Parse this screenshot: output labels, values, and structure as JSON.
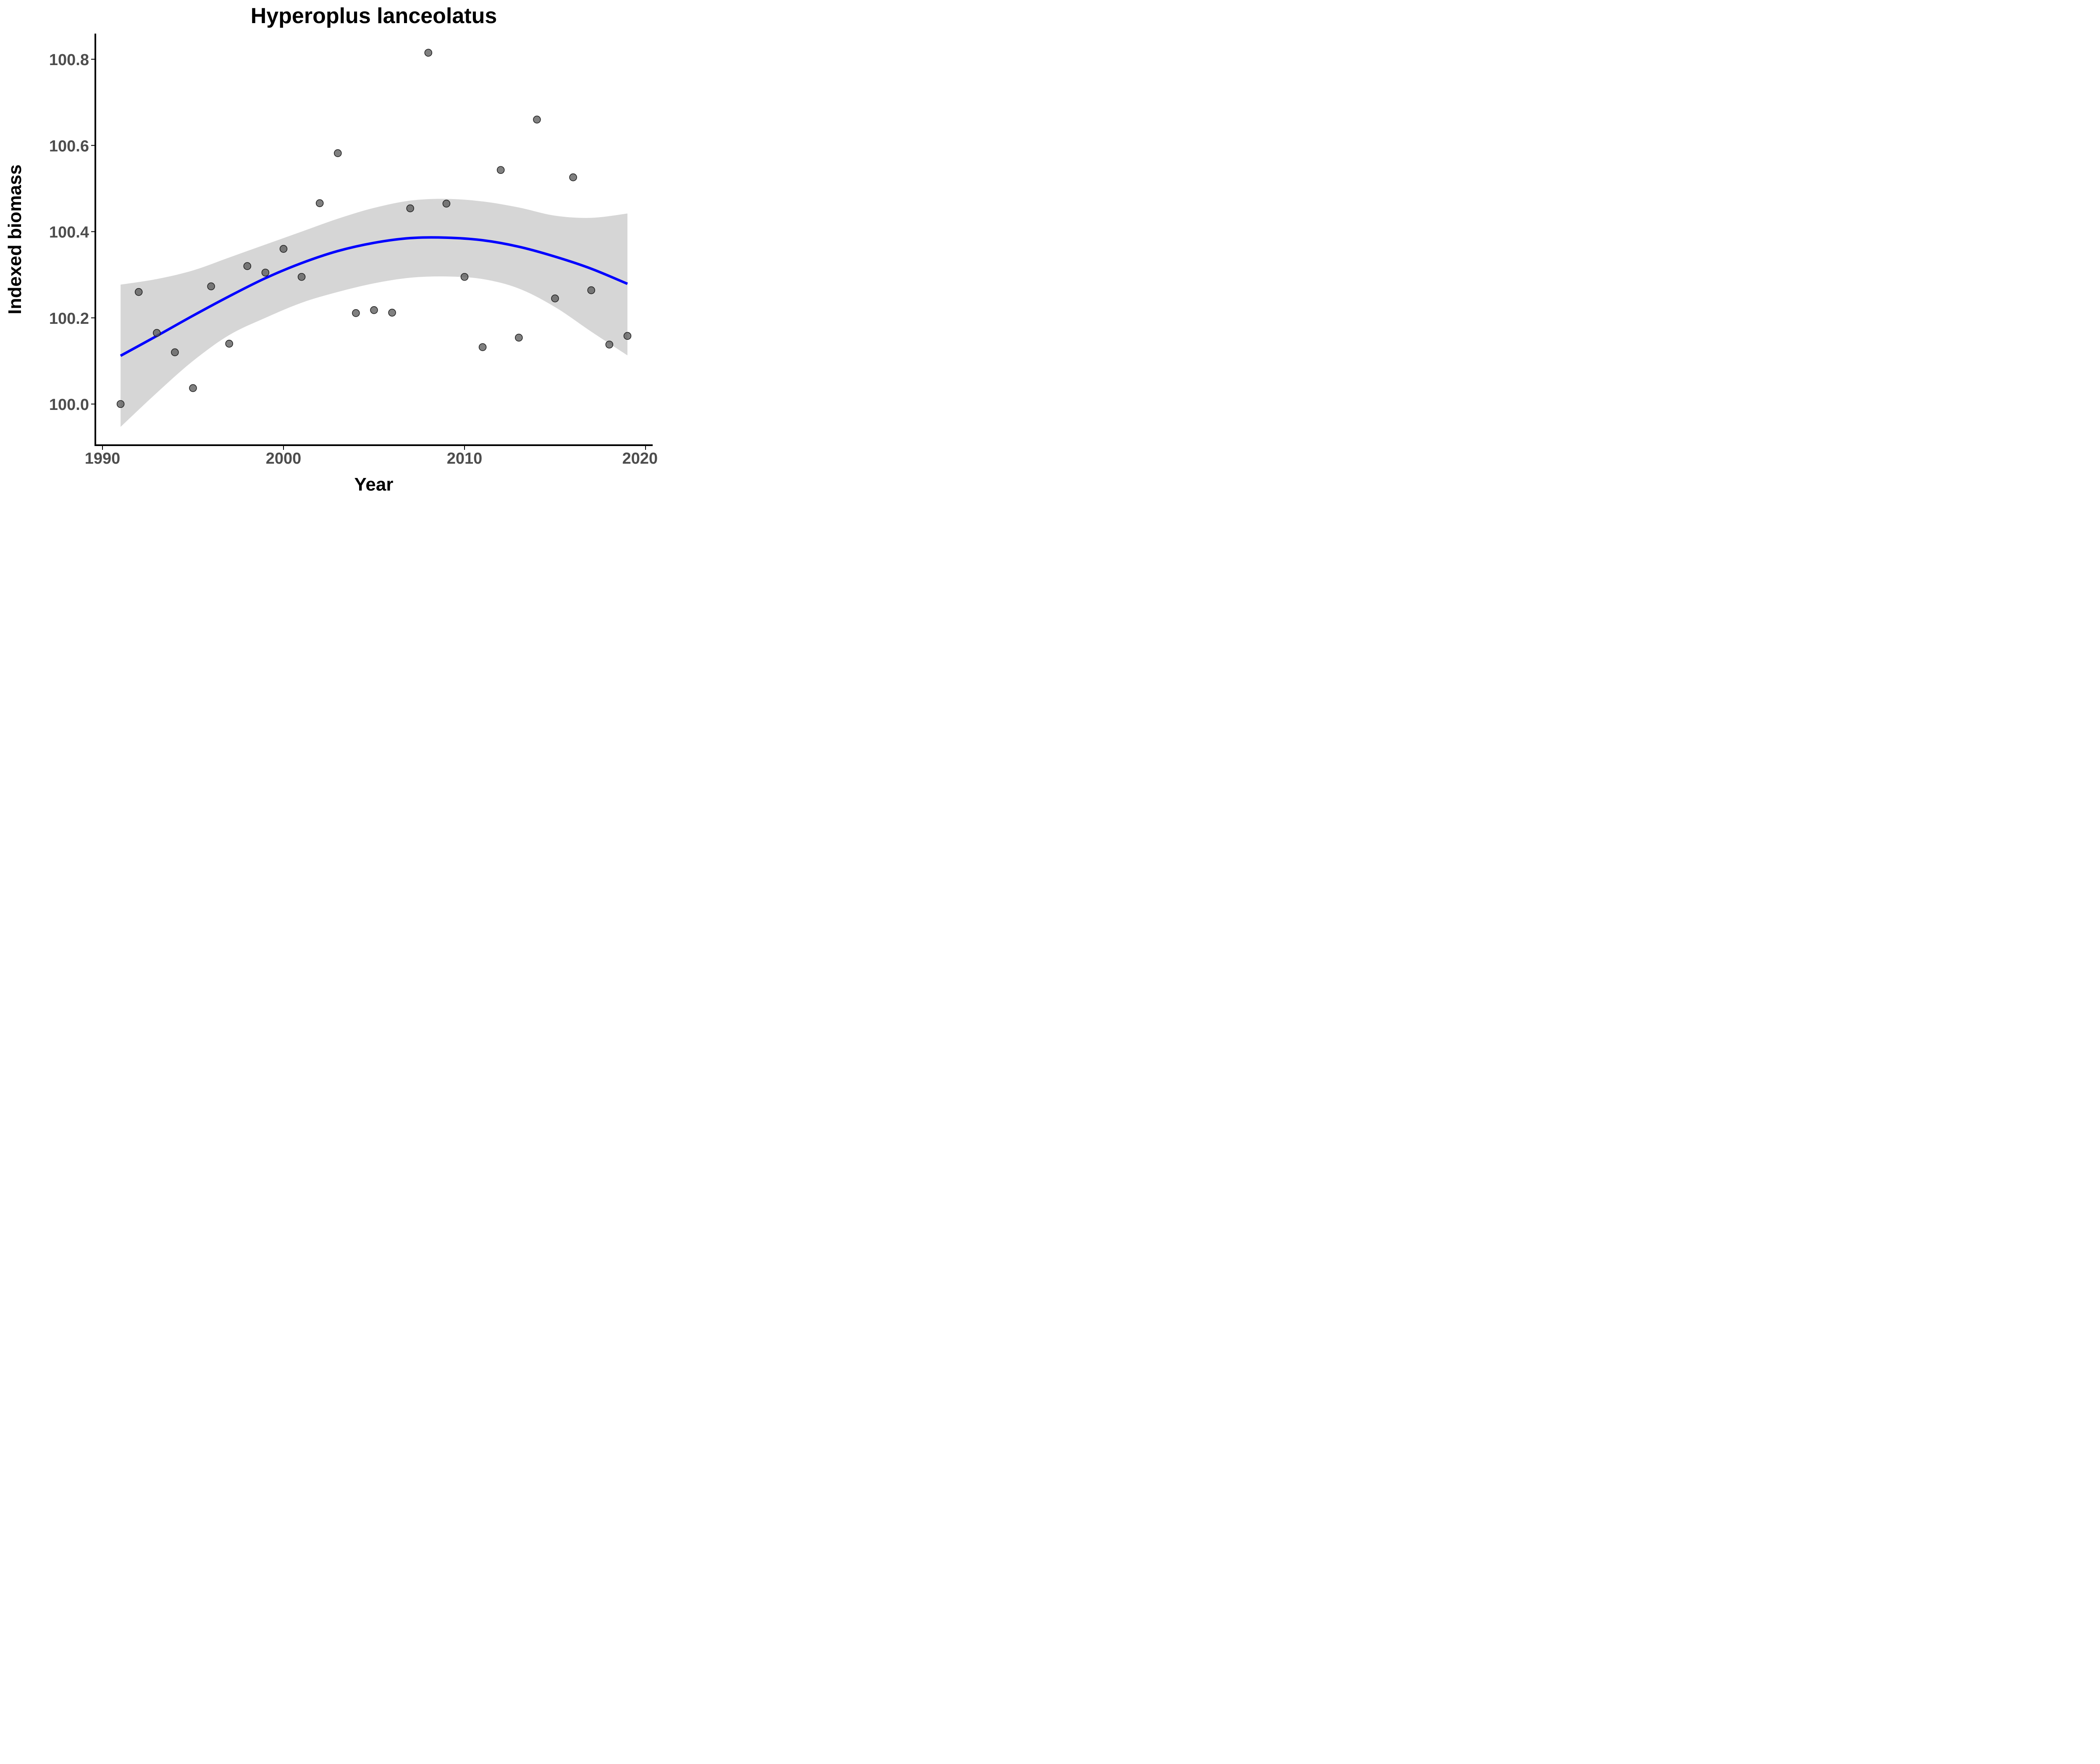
{
  "chart_data": {
    "type": "scatter",
    "title": "Hyperoplus lanceolatus",
    "xlabel": "Year",
    "ylabel": "Indexed biomass",
    "xlim": [
      1990,
      2020
    ],
    "ylim": [
      99.9,
      100.86
    ],
    "x_ticks": [
      1990,
      2000,
      2010,
      2020
    ],
    "x_tick_labels": [
      "1990",
      "2000",
      "2010",
      "2020"
    ],
    "y_ticks": [
      100.0,
      100.2,
      100.4,
      100.6,
      100.8
    ],
    "y_tick_labels": [
      "100.0",
      "100.2",
      "100.4",
      "100.6",
      "100.8"
    ],
    "grid": false,
    "legend": "none",
    "colors": {
      "points": "#555555",
      "trend": "#0000ff",
      "band": "#d6d6d6",
      "axis": "#000000",
      "tick_label": "#4d4d4d"
    },
    "points": [
      {
        "x": 1991,
        "y": 100.0
      },
      {
        "x": 1992,
        "y": 100.26
      },
      {
        "x": 1993,
        "y": 100.165
      },
      {
        "x": 1994,
        "y": 100.12
      },
      {
        "x": 1995,
        "y": 100.037
      },
      {
        "x": 1996,
        "y": 100.273
      },
      {
        "x": 1997,
        "y": 100.14
      },
      {
        "x": 1998,
        "y": 100.32
      },
      {
        "x": 1999,
        "y": 100.305
      },
      {
        "x": 2000,
        "y": 100.36
      },
      {
        "x": 2001,
        "y": 100.295
      },
      {
        "x": 2002,
        "y": 100.466
      },
      {
        "x": 2003,
        "y": 100.582
      },
      {
        "x": 2004,
        "y": 100.211
      },
      {
        "x": 2005,
        "y": 100.218
      },
      {
        "x": 2006,
        "y": 100.212
      },
      {
        "x": 2007,
        "y": 100.454
      },
      {
        "x": 2008,
        "y": 100.815
      },
      {
        "x": 2009,
        "y": 100.465
      },
      {
        "x": 2010,
        "y": 100.295
      },
      {
        "x": 2011,
        "y": 100.132
      },
      {
        "x": 2012,
        "y": 100.543
      },
      {
        "x": 2013,
        "y": 100.154
      },
      {
        "x": 2014,
        "y": 100.66
      },
      {
        "x": 2015,
        "y": 100.245
      },
      {
        "x": 2016,
        "y": 100.526
      },
      {
        "x": 2017,
        "y": 100.264
      },
      {
        "x": 2018,
        "y": 100.138
      },
      {
        "x": 2019,
        "y": 100.158
      }
    ],
    "trend": {
      "x": [
        1991,
        1993,
        1995,
        1997,
        1999,
        2001,
        2003,
        2005,
        2007,
        2009,
        2011,
        2013,
        2015,
        2017,
        2019
      ],
      "y": [
        100.112,
        100.158,
        100.205,
        100.25,
        100.292,
        100.327,
        100.355,
        100.374,
        100.385,
        100.386,
        100.38,
        100.365,
        100.342,
        100.314,
        100.279
      ],
      "upper": [
        100.277,
        100.29,
        100.31,
        100.34,
        100.37,
        100.4,
        100.43,
        100.455,
        100.472,
        100.476,
        100.47,
        100.456,
        100.437,
        100.432,
        100.442
      ],
      "lower": [
        99.947,
        100.026,
        100.1,
        100.16,
        100.2,
        100.235,
        100.26,
        100.28,
        100.293,
        100.296,
        100.29,
        100.268,
        100.225,
        100.168,
        100.113
      ]
    }
  }
}
